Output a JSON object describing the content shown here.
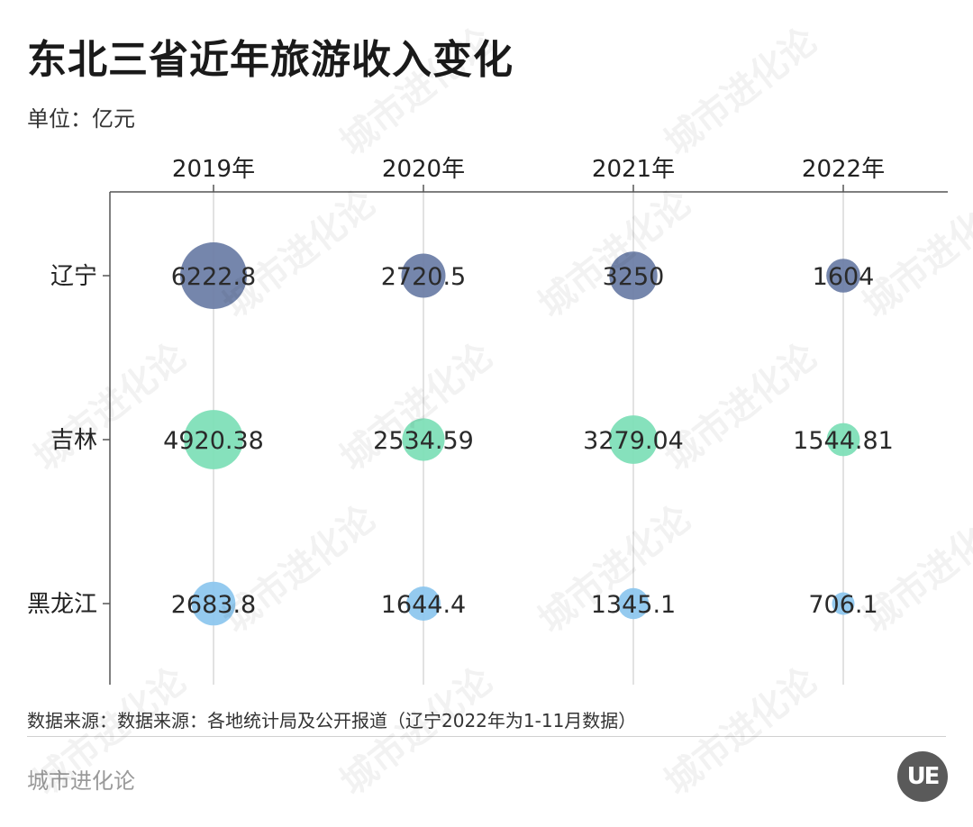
{
  "title": "东北三省近年旅游收入变化",
  "unit": "单位：亿元",
  "source": "数据来源：数据来源：各地统计局及公开报道（辽宁2022年为1-11月数据）",
  "brand": "城市进化论",
  "logo_text": "UE",
  "watermark": "城市进化论",
  "chart_data": {
    "type": "bubble",
    "title": "东北三省近年旅游收入变化",
    "unit": "亿元",
    "x_categories": [
      "2019年",
      "2020年",
      "2021年",
      "2022年"
    ],
    "y_categories": [
      "辽宁",
      "吉林",
      "黑龙江"
    ],
    "series": [
      {
        "name": "辽宁",
        "color": "#6e7fa8",
        "values": [
          6222.8,
          2720.5,
          3250,
          1604
        ],
        "labels": [
          "6222.8",
          "2720.5",
          "3250",
          "1604"
        ]
      },
      {
        "name": "吉林",
        "color": "#7fdfb8",
        "values": [
          4920.38,
          2534.59,
          3279.04,
          1544.81
        ],
        "labels": [
          "4920.38",
          "2534.59",
          "3279.04",
          "1544.81"
        ]
      },
      {
        "name": "黑龙江",
        "color": "#8ec7ee",
        "values": [
          2683.8,
          1644.4,
          1345.1,
          706.1
        ],
        "labels": [
          "2683.8",
          "1644.4",
          "1345.1",
          "706.1"
        ]
      }
    ]
  }
}
